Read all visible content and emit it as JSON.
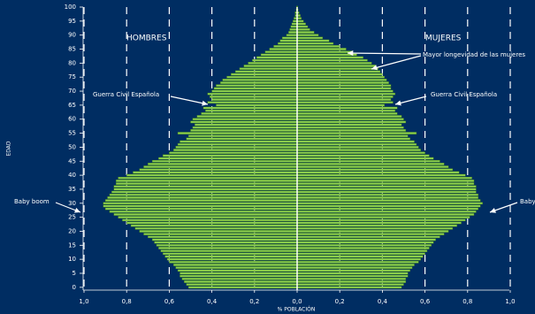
{
  "chart_data": {
    "type": "pyramid",
    "xlabel": "% POBLACIÓN",
    "ylabel": "EDAD",
    "y": [
      0,
      1,
      2,
      3,
      4,
      5,
      6,
      7,
      8,
      9,
      10,
      11,
      12,
      13,
      14,
      15,
      16,
      17,
      18,
      19,
      20,
      21,
      22,
      23,
      24,
      25,
      26,
      27,
      28,
      29,
      30,
      31,
      32,
      33,
      34,
      35,
      36,
      37,
      38,
      39,
      40,
      41,
      42,
      43,
      44,
      45,
      46,
      47,
      48,
      49,
      50,
      51,
      52,
      53,
      54,
      55,
      56,
      57,
      58,
      59,
      60,
      61,
      62,
      63,
      64,
      65,
      66,
      67,
      68,
      69,
      70,
      71,
      72,
      73,
      74,
      75,
      76,
      77,
      78,
      79,
      80,
      81,
      82,
      83,
      84,
      85,
      86,
      87,
      88,
      89,
      90,
      91,
      92,
      93,
      94,
      95,
      96,
      97,
      98,
      99,
      100
    ],
    "series": [
      {
        "name": "HOMBRES",
        "side": "left",
        "color": "#8fd14f",
        "values": [
          0.51,
          0.52,
          0.53,
          0.54,
          0.55,
          0.55,
          0.56,
          0.57,
          0.58,
          0.6,
          0.61,
          0.62,
          0.63,
          0.64,
          0.65,
          0.66,
          0.67,
          0.68,
          0.7,
          0.72,
          0.74,
          0.76,
          0.78,
          0.8,
          0.82,
          0.84,
          0.86,
          0.88,
          0.9,
          0.91,
          0.91,
          0.9,
          0.89,
          0.88,
          0.87,
          0.86,
          0.86,
          0.85,
          0.85,
          0.84,
          0.8,
          0.77,
          0.74,
          0.72,
          0.7,
          0.68,
          0.65,
          0.63,
          0.6,
          0.58,
          0.57,
          0.56,
          0.55,
          0.52,
          0.51,
          0.56,
          0.5,
          0.49,
          0.48,
          0.5,
          0.49,
          0.47,
          0.45,
          0.43,
          0.44,
          0.38,
          0.42,
          0.4,
          0.41,
          0.42,
          0.4,
          0.39,
          0.38,
          0.36,
          0.35,
          0.33,
          0.31,
          0.29,
          0.27,
          0.25,
          0.23,
          0.21,
          0.19,
          0.17,
          0.15,
          0.13,
          0.11,
          0.09,
          0.08,
          0.07,
          0.05,
          0.04,
          0.035,
          0.03,
          0.025,
          0.02,
          0.015,
          0.01,
          0.01,
          0.005,
          0.003
        ]
      },
      {
        "name": "MUJERES",
        "side": "right",
        "color": "#8fd14f",
        "values": [
          0.49,
          0.5,
          0.51,
          0.51,
          0.52,
          0.52,
          0.53,
          0.54,
          0.55,
          0.57,
          0.58,
          0.59,
          0.6,
          0.61,
          0.62,
          0.63,
          0.64,
          0.65,
          0.67,
          0.69,
          0.71,
          0.73,
          0.75,
          0.77,
          0.79,
          0.81,
          0.83,
          0.84,
          0.85,
          0.86,
          0.87,
          0.86,
          0.85,
          0.85,
          0.84,
          0.84,
          0.84,
          0.83,
          0.83,
          0.82,
          0.79,
          0.76,
          0.73,
          0.71,
          0.69,
          0.67,
          0.64,
          0.62,
          0.6,
          0.58,
          0.57,
          0.56,
          0.55,
          0.53,
          0.52,
          0.56,
          0.51,
          0.5,
          0.49,
          0.51,
          0.5,
          0.49,
          0.47,
          0.46,
          0.47,
          0.41,
          0.45,
          0.44,
          0.45,
          0.46,
          0.45,
          0.44,
          0.44,
          0.43,
          0.42,
          0.41,
          0.4,
          0.39,
          0.38,
          0.37,
          0.35,
          0.33,
          0.31,
          0.28,
          0.26,
          0.23,
          0.2,
          0.17,
          0.15,
          0.12,
          0.1,
          0.08,
          0.06,
          0.05,
          0.04,
          0.03,
          0.02,
          0.015,
          0.01,
          0.005,
          0.003
        ]
      }
    ],
    "xlim": [
      0,
      1.0
    ],
    "xticks_left": [
      {
        "value": 1.0,
        "label": "1,0"
      },
      {
        "value": 0.8,
        "label": "0,8"
      },
      {
        "value": 0.6,
        "label": "0,6"
      },
      {
        "value": 0.4,
        "label": "0,4"
      },
      {
        "value": 0.2,
        "label": "0,2"
      }
    ],
    "xticks_right": [
      {
        "value": 0,
        "label": "0,0"
      },
      {
        "value": 0.2,
        "label": "0,2"
      },
      {
        "value": 0.4,
        "label": "0,4"
      },
      {
        "value": 0.6,
        "label": "0,6"
      },
      {
        "value": 0.8,
        "label": "0,8"
      },
      {
        "value": 1.0,
        "label": "1,0"
      }
    ],
    "ylim": [
      -1,
      100
    ],
    "yticks": [
      0,
      5,
      10,
      15,
      20,
      25,
      30,
      35,
      40,
      45,
      50,
      55,
      60,
      65,
      70,
      75,
      80,
      85,
      90,
      95,
      100
    ],
    "annotations": [
      "Mayor longevidad de las mujeres",
      "Guerra Civil Española",
      "Guerra Civil Española",
      "Baby boom",
      "Baby boom"
    ]
  }
}
